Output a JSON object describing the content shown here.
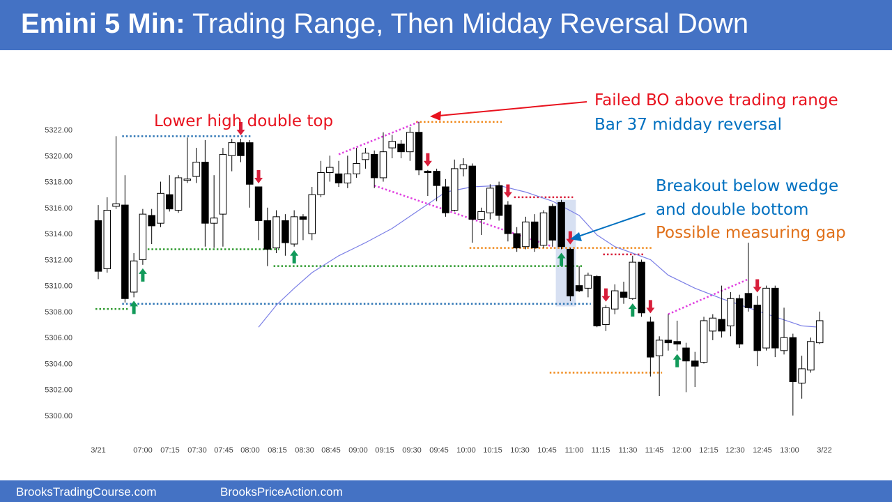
{
  "title": {
    "bold": "Emini 5 Min:",
    "rest": "Trading Range, Then Midday Reversal Down"
  },
  "footer": {
    "left": "BrooksTradingCourse.com",
    "right": "BrooksPriceAction.com"
  },
  "colors": {
    "header_bg": "#4472c4",
    "red_annotation": "#e8121e",
    "blue_annotation": "#0070c0",
    "orange_annotation": "#e0701a",
    "bull_arrow": "#129a5a",
    "bear_arrow": "#d81e3a",
    "ema": "#7b7fe6",
    "wedge": "#e040e0",
    "blue_dotted": "#2f76b5",
    "green_dotted": "#2f9a2f",
    "orange_dotted": "#f08a1c"
  },
  "annotations": {
    "lower_high": "Lower high double top",
    "failed_bo": "Failed BO above trading range",
    "bar37": "Bar 37 midday reversal",
    "breakout": "Breakout below wedge",
    "double_bottom": "and double bottom",
    "measuring_gap": "Possible measuring gap"
  },
  "chart_data": {
    "type": "candlestick",
    "title": "Emini 5 Min: Trading Range, Then Midday Reversal Down",
    "x_tick_labels": [
      "3/21",
      "07:00",
      "07:15",
      "07:30",
      "07:45",
      "08:00",
      "08:15",
      "08:30",
      "08:45",
      "09:00",
      "09:15",
      "09:30",
      "09:45",
      "10:00",
      "10:15",
      "10:30",
      "10:45",
      "11:00",
      "11:15",
      "11:30",
      "11:45",
      "12:00",
      "12:15",
      "12:30",
      "12:45",
      "13:00",
      "3/22"
    ],
    "y_tick_labels": [
      "5322.00",
      "5320.00",
      "5318.00",
      "5316.00",
      "5314.00",
      "5312.00",
      "5310.00",
      "5308.00",
      "5306.00",
      "5304.00",
      "5302.00",
      "5300.00"
    ],
    "ylim": [
      5299.5,
      5323.5
    ],
    "grid": false,
    "legend": "none",
    "candles": [
      {
        "o": 5315.0,
        "h": 5316.2,
        "l": 5310.5,
        "c": 5311.1
      },
      {
        "o": 5311.3,
        "h": 5316.8,
        "l": 5311.0,
        "c": 5315.8
      },
      {
        "o": 5316.1,
        "h": 5321.5,
        "l": 5315.9,
        "c": 5316.3
      },
      {
        "o": 5316.2,
        "h": 5318.5,
        "l": 5308.7,
        "c": 5309.0
      },
      {
        "o": 5309.5,
        "h": 5312.5,
        "l": 5309.1,
        "c": 5311.9
      },
      {
        "o": 5312.0,
        "h": 5315.9,
        "l": 5311.6,
        "c": 5315.5
      },
      {
        "o": 5315.4,
        "h": 5315.9,
        "l": 5313.2,
        "c": 5314.6
      },
      {
        "o": 5314.8,
        "h": 5318.0,
        "l": 5314.5,
        "c": 5317.1
      },
      {
        "o": 5317.0,
        "h": 5318.5,
        "l": 5315.7,
        "c": 5315.9
      },
      {
        "o": 5315.8,
        "h": 5318.5,
        "l": 5315.6,
        "c": 5318.3
      },
      {
        "o": 5318.1,
        "h": 5321.4,
        "l": 5317.9,
        "c": 5318.2
      },
      {
        "o": 5318.4,
        "h": 5320.6,
        "l": 5317.9,
        "c": 5319.5
      },
      {
        "o": 5319.5,
        "h": 5321.2,
        "l": 5313.0,
        "c": 5314.8
      },
      {
        "o": 5314.8,
        "h": 5318.5,
        "l": 5312.9,
        "c": 5315.2
      },
      {
        "o": 5315.5,
        "h": 5320.6,
        "l": 5313.0,
        "c": 5320.1
      },
      {
        "o": 5320.0,
        "h": 5321.3,
        "l": 5318.8,
        "c": 5321.0
      },
      {
        "o": 5321.0,
        "h": 5321.3,
        "l": 5319.5,
        "c": 5320.0
      },
      {
        "o": 5321.0,
        "h": 5321.2,
        "l": 5316.0,
        "c": 5317.8
      },
      {
        "o": 5317.6,
        "h": 5317.6,
        "l": 5313.5,
        "c": 5315.0
      },
      {
        "o": 5315.0,
        "h": 5316.0,
        "l": 5311.5,
        "c": 5312.8
      },
      {
        "o": 5312.9,
        "h": 5315.8,
        "l": 5312.5,
        "c": 5315.3
      },
      {
        "o": 5315.0,
        "h": 5315.5,
        "l": 5312.3,
        "c": 5313.3
      },
      {
        "o": 5313.2,
        "h": 5315.8,
        "l": 5313.0,
        "c": 5315.3
      },
      {
        "o": 5315.3,
        "h": 5315.5,
        "l": 5313.5,
        "c": 5315.1
      },
      {
        "o": 5314.0,
        "h": 5317.6,
        "l": 5313.5,
        "c": 5317.0
      },
      {
        "o": 5317.0,
        "h": 5319.6,
        "l": 5316.8,
        "c": 5318.7
      },
      {
        "o": 5318.7,
        "h": 5320.0,
        "l": 5318.0,
        "c": 5319.1
      },
      {
        "o": 5318.6,
        "h": 5319.6,
        "l": 5317.6,
        "c": 5317.9
      },
      {
        "o": 5317.9,
        "h": 5320.0,
        "l": 5317.5,
        "c": 5318.6
      },
      {
        "o": 5318.6,
        "h": 5320.6,
        "l": 5318.3,
        "c": 5319.4
      },
      {
        "o": 5319.7,
        "h": 5320.6,
        "l": 5319.0,
        "c": 5320.2
      },
      {
        "o": 5320.1,
        "h": 5320.4,
        "l": 5317.5,
        "c": 5318.3
      },
      {
        "o": 5318.3,
        "h": 5321.8,
        "l": 5318.0,
        "c": 5320.3
      },
      {
        "o": 5320.6,
        "h": 5321.6,
        "l": 5319.8,
        "c": 5321.1
      },
      {
        "o": 5320.9,
        "h": 5321.2,
        "l": 5319.8,
        "c": 5320.3
      },
      {
        "o": 5320.3,
        "h": 5322.2,
        "l": 5319.6,
        "c": 5321.8
      },
      {
        "o": 5321.8,
        "h": 5322.6,
        "l": 5318.5,
        "c": 5318.9
      },
      {
        "o": 5318.8,
        "h": 5318.9,
        "l": 5316.9,
        "c": 5318.7
      },
      {
        "o": 5318.8,
        "h": 5319.0,
        "l": 5316.5,
        "c": 5317.7
      },
      {
        "o": 5317.6,
        "h": 5318.2,
        "l": 5315.3,
        "c": 5315.6
      },
      {
        "o": 5315.8,
        "h": 5319.7,
        "l": 5315.7,
        "c": 5319.0
      },
      {
        "o": 5319.0,
        "h": 5319.8,
        "l": 5318.4,
        "c": 5319.3
      },
      {
        "o": 5319.2,
        "h": 5319.4,
        "l": 5313.3,
        "c": 5315.1
      },
      {
        "o": 5315.1,
        "h": 5316.0,
        "l": 5313.9,
        "c": 5315.7
      },
      {
        "o": 5315.6,
        "h": 5317.8,
        "l": 5315.1,
        "c": 5317.5
      },
      {
        "o": 5317.7,
        "h": 5318.0,
        "l": 5315.0,
        "c": 5315.4
      },
      {
        "o": 5316.2,
        "h": 5316.5,
        "l": 5313.4,
        "c": 5314.0
      },
      {
        "o": 5314.0,
        "h": 5314.5,
        "l": 5312.6,
        "c": 5312.9
      },
      {
        "o": 5313.0,
        "h": 5315.3,
        "l": 5312.8,
        "c": 5314.9
      },
      {
        "o": 5314.9,
        "h": 5315.5,
        "l": 5312.6,
        "c": 5312.9
      },
      {
        "o": 5313.1,
        "h": 5315.8,
        "l": 5312.9,
        "c": 5315.6
      },
      {
        "o": 5316.1,
        "h": 5316.3,
        "l": 5313.0,
        "c": 5313.5
      },
      {
        "o": 5316.4,
        "h": 5316.6,
        "l": 5312.8,
        "c": 5313.0
      },
      {
        "o": 5312.8,
        "h": 5312.9,
        "l": 5308.8,
        "c": 5309.2
      },
      {
        "o": 5310.0,
        "h": 5311.5,
        "l": 5309.5,
        "c": 5309.6
      },
      {
        "o": 5309.8,
        "h": 5311.0,
        "l": 5309.1,
        "c": 5310.8
      },
      {
        "o": 5310.7,
        "h": 5310.8,
        "l": 5306.8,
        "c": 5306.9
      },
      {
        "o": 5307.0,
        "h": 5308.5,
        "l": 5306.5,
        "c": 5308.3
      },
      {
        "o": 5308.2,
        "h": 5310.1,
        "l": 5307.8,
        "c": 5309.6
      },
      {
        "o": 5309.5,
        "h": 5310.3,
        "l": 5308.6,
        "c": 5309.1
      },
      {
        "o": 5309.0,
        "h": 5312.3,
        "l": 5308.9,
        "c": 5311.8
      },
      {
        "o": 5311.8,
        "h": 5312.0,
        "l": 5307.6,
        "c": 5307.9
      },
      {
        "o": 5307.2,
        "h": 5307.6,
        "l": 5303.0,
        "c": 5304.5
      },
      {
        "o": 5304.6,
        "h": 5306.1,
        "l": 5301.5,
        "c": 5305.8
      },
      {
        "o": 5305.8,
        "h": 5307.8,
        "l": 5305.0,
        "c": 5305.6
      },
      {
        "o": 5305.7,
        "h": 5307.3,
        "l": 5305.0,
        "c": 5305.5
      },
      {
        "o": 5305.2,
        "h": 5305.6,
        "l": 5301.8,
        "c": 5304.2
      },
      {
        "o": 5304.2,
        "h": 5304.9,
        "l": 5302.2,
        "c": 5303.8
      },
      {
        "o": 5304.1,
        "h": 5307.6,
        "l": 5304.0,
        "c": 5307.3
      },
      {
        "o": 5306.5,
        "h": 5307.8,
        "l": 5305.8,
        "c": 5307.5
      },
      {
        "o": 5307.4,
        "h": 5310.0,
        "l": 5306.0,
        "c": 5306.5
      },
      {
        "o": 5306.9,
        "h": 5309.5,
        "l": 5306.1,
        "c": 5309.0
      },
      {
        "o": 5309.0,
        "h": 5309.3,
        "l": 5305.2,
        "c": 5305.5
      },
      {
        "o": 5309.4,
        "h": 5313.3,
        "l": 5308.0,
        "c": 5308.3
      },
      {
        "o": 5308.5,
        "h": 5309.2,
        "l": 5303.8,
        "c": 5305.0
      },
      {
        "o": 5305.2,
        "h": 5310.0,
        "l": 5305.0,
        "c": 5309.8
      },
      {
        "o": 5309.8,
        "h": 5310.0,
        "l": 5304.5,
        "c": 5305.2
      },
      {
        "o": 5305.0,
        "h": 5308.3,
        "l": 5304.7,
        "c": 5306.0
      },
      {
        "o": 5306.0,
        "h": 5306.3,
        "l": 5300.0,
        "c": 5302.6
      },
      {
        "o": 5302.5,
        "h": 5304.6,
        "l": 5301.3,
        "c": 5303.6
      },
      {
        "o": 5303.5,
        "h": 5306.0,
        "l": 5303.3,
        "c": 5305.7
      },
      {
        "o": 5305.6,
        "h": 5308.0,
        "l": 5305.5,
        "c": 5307.3
      }
    ],
    "ema": [
      {
        "bar": 18,
        "v": 5306.8
      },
      {
        "bar": 20,
        "v": 5308.5
      },
      {
        "bar": 22,
        "v": 5309.8
      },
      {
        "bar": 24,
        "v": 5311.0
      },
      {
        "bar": 27,
        "v": 5312.3
      },
      {
        "bar": 30,
        "v": 5313.3
      },
      {
        "bar": 33,
        "v": 5314.4
      },
      {
        "bar": 36,
        "v": 5315.8
      },
      {
        "bar": 39,
        "v": 5317.2
      },
      {
        "bar": 42,
        "v": 5317.6
      },
      {
        "bar": 45,
        "v": 5317.7
      },
      {
        "bar": 48,
        "v": 5317.2
      },
      {
        "bar": 51,
        "v": 5316.5
      },
      {
        "bar": 54,
        "v": 5315.4
      },
      {
        "bar": 56,
        "v": 5313.9
      },
      {
        "bar": 58,
        "v": 5313.0
      },
      {
        "bar": 62,
        "v": 5312.0
      },
      {
        "bar": 64,
        "v": 5310.8
      },
      {
        "bar": 67,
        "v": 5309.8
      },
      {
        "bar": 70,
        "v": 5309.0
      },
      {
        "bar": 73,
        "v": 5308.3
      },
      {
        "bar": 76,
        "v": 5307.6
      },
      {
        "bar": 79,
        "v": 5306.9
      },
      {
        "bar": 81,
        "v": 5306.8
      }
    ],
    "reference_lines": [
      {
        "style": "blue-dotted",
        "y": 5321.5,
        "from_bar": 3,
        "to_bar": 17
      },
      {
        "style": "blue-dotted",
        "y": 5308.6,
        "from_bar": 3,
        "to_bar": 55
      },
      {
        "style": "green-dotted",
        "y": 5308.2,
        "from_bar": 0,
        "to_bar": 3
      },
      {
        "style": "green-dotted",
        "y": 5312.8,
        "from_bar": 5,
        "to_bar": 20
      },
      {
        "style": "green-dotted",
        "y": 5311.5,
        "from_bar": 20,
        "to_bar": 54
      },
      {
        "style": "orange-dotted",
        "y": 5322.6,
        "from_bar": 36,
        "to_bar": 45
      },
      {
        "style": "orange-dotted",
        "y": 5312.9,
        "from_bar": 42,
        "to_bar": 62
      },
      {
        "style": "orange-dotted",
        "y": 5303.3,
        "from_bar": 51,
        "to_bar": 63
      },
      {
        "style": "red-dotted",
        "y": 5316.8,
        "from_bar": 47,
        "to_bar": 53
      },
      {
        "style": "red-dotted",
        "y": 5312.4,
        "from_bar": 57,
        "to_bar": 61
      }
    ],
    "wedge_lines": [
      {
        "from": {
          "bar": 27,
          "v": 5320.1
        },
        "to": {
          "bar": 36,
          "v": 5322.6
        }
      },
      {
        "from": {
          "bar": 31,
          "v": 5317.7
        },
        "to": {
          "bar": 51,
          "v": 5313.0
        }
      },
      {
        "from": {
          "bar": 64,
          "v": 5307.8
        },
        "to": {
          "bar": 73,
          "v": 5310.5
        }
      }
    ],
    "arrows": [
      {
        "dir": "up",
        "bar": 4
      },
      {
        "dir": "up",
        "bar": 5
      },
      {
        "dir": "down",
        "bar": 16
      },
      {
        "dir": "down",
        "bar": 18
      },
      {
        "dir": "up",
        "bar": 22
      },
      {
        "dir": "down",
        "bar": 37
      },
      {
        "dir": "down",
        "bar": 46
      },
      {
        "dir": "up",
        "bar": 52
      },
      {
        "dir": "down",
        "bar": 53
      },
      {
        "dir": "down",
        "bar": 57
      },
      {
        "dir": "up",
        "bar": 60
      },
      {
        "dir": "down",
        "bar": 62
      },
      {
        "dir": "up",
        "bar": 65
      },
      {
        "dir": "down",
        "bar": 74
      }
    ],
    "highlight_bars": [
      52,
      53
    ]
  }
}
